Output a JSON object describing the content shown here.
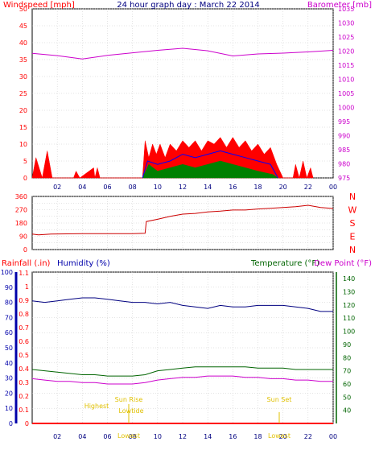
{
  "chart_data": [
    {
      "type": "line",
      "title": "24 hour graph day : March 22 2014",
      "ylabel_left": "Windspeed [mph]",
      "ylabel_right": "Barometer [mb]",
      "ylim_left": [
        0,
        50
      ],
      "ylim_right": [
        975,
        1035
      ],
      "y_ticks_left": [
        "0",
        "5",
        "10",
        "15",
        "20",
        "25",
        "30",
        "35",
        "40",
        "45",
        "50"
      ],
      "y_ticks_right": [
        "975",
        "980",
        "985",
        "990",
        "995",
        "1000",
        "1005",
        "1010",
        "1015",
        "1020",
        "1025",
        "1030",
        "1035"
      ],
      "x_ticks": [
        "02",
        "04",
        "06",
        "08",
        "10",
        "12",
        "14",
        "16",
        "18",
        "20",
        "22",
        "00"
      ],
      "xlim": [
        0,
        24
      ],
      "grid": true,
      "colors": {
        "windspeed": "#ff0000",
        "average": "#0000ff",
        "direction_gust": "#008000",
        "barometer": "#cc00cc"
      },
      "series": {
        "barometer": [
          [
            0,
            1019.2
          ],
          [
            2,
            1018.4
          ],
          [
            4,
            1017.2
          ],
          [
            6,
            1018.5
          ],
          [
            8,
            1019.4
          ],
          [
            10,
            1020.3
          ],
          [
            12,
            1021.0
          ],
          [
            14,
            1020.1
          ],
          [
            16,
            1018.3
          ],
          [
            18,
            1019.0
          ],
          [
            20,
            1019.3
          ],
          [
            22,
            1019.7
          ],
          [
            24,
            1020.3
          ]
        ],
        "gust": [
          [
            0,
            0
          ],
          [
            0.3,
            6
          ],
          [
            0.8,
            0
          ],
          [
            1.2,
            8
          ],
          [
            1.6,
            0
          ],
          [
            3.3,
            0
          ],
          [
            3.5,
            2
          ],
          [
            3.8,
            0
          ],
          [
            4.9,
            3
          ],
          [
            5.0,
            0
          ],
          [
            5.2,
            3
          ],
          [
            5.4,
            0
          ],
          [
            8.8,
            0
          ],
          [
            9.0,
            11
          ],
          [
            9.3,
            6
          ],
          [
            9.6,
            10
          ],
          [
            9.9,
            7
          ],
          [
            10.2,
            10
          ],
          [
            10.6,
            6
          ],
          [
            11.0,
            10
          ],
          [
            11.5,
            8
          ],
          [
            12.0,
            11
          ],
          [
            12.5,
            9
          ],
          [
            13.0,
            11
          ],
          [
            13.5,
            8
          ],
          [
            14.0,
            11
          ],
          [
            14.5,
            10
          ],
          [
            15.0,
            12
          ],
          [
            15.5,
            9
          ],
          [
            16.0,
            12
          ],
          [
            16.5,
            9
          ],
          [
            17.0,
            11
          ],
          [
            17.5,
            8
          ],
          [
            18.0,
            10
          ],
          [
            18.5,
            7
          ],
          [
            19.0,
            9
          ],
          [
            19.5,
            4
          ],
          [
            20.0,
            0
          ],
          [
            20.8,
            0
          ],
          [
            21.0,
            4
          ],
          [
            21.3,
            0
          ],
          [
            21.6,
            5
          ],
          [
            21.9,
            0
          ],
          [
            22.2,
            3
          ],
          [
            22.4,
            0
          ]
        ],
        "average": [
          [
            8.8,
            0
          ],
          [
            9.2,
            5
          ],
          [
            10.0,
            4
          ],
          [
            11.0,
            5
          ],
          [
            12.0,
            7
          ],
          [
            13.0,
            6
          ],
          [
            14.0,
            7
          ],
          [
            15.0,
            8
          ],
          [
            16.0,
            7
          ],
          [
            17.0,
            6
          ],
          [
            18.0,
            5
          ],
          [
            19.0,
            4
          ],
          [
            19.6,
            0
          ]
        ],
        "lull": [
          [
            8.8,
            0
          ],
          [
            9.3,
            4
          ],
          [
            10.0,
            2
          ],
          [
            11.0,
            3
          ],
          [
            12.0,
            4
          ],
          [
            13.0,
            3
          ],
          [
            14.0,
            4
          ],
          [
            15.0,
            5
          ],
          [
            16.0,
            4
          ],
          [
            17.0,
            3
          ],
          [
            18.0,
            2
          ],
          [
            19.2,
            1
          ],
          [
            19.6,
            0
          ]
        ]
      }
    },
    {
      "type": "line",
      "ylabel_right": [
        "N",
        "W",
        "S",
        "E",
        "N"
      ],
      "ylim": [
        0,
        360
      ],
      "y_ticks": [
        "0",
        "45",
        "90",
        "135",
        "180",
        "225",
        "270",
        "315",
        "360"
      ],
      "x_ticks": [],
      "xlim": [
        0,
        24
      ],
      "grid": true,
      "series": {
        "direction": [
          [
            0,
            105
          ],
          [
            0.5,
            100
          ],
          [
            1.5,
            105
          ],
          [
            4,
            108
          ],
          [
            6,
            108
          ],
          [
            8,
            108
          ],
          [
            9.0,
            110
          ],
          [
            9.1,
            190
          ],
          [
            10,
            205
          ],
          [
            11,
            225
          ],
          [
            12,
            240
          ],
          [
            13,
            245
          ],
          [
            14,
            255
          ],
          [
            15,
            260
          ],
          [
            16,
            268
          ],
          [
            17,
            268
          ],
          [
            18,
            275
          ],
          [
            19,
            280
          ],
          [
            20,
            285
          ],
          [
            21,
            290
          ],
          [
            22,
            300
          ],
          [
            23,
            285
          ],
          [
            24,
            278
          ]
        ]
      }
    },
    {
      "type": "line",
      "ylabel_left_1": "Rainfall (.in)",
      "ylabel_left_2": "Humidity (%)",
      "ylabel_right_1": "Temperature (°F)",
      "ylabel_right_2": "Dew Point (°F)",
      "rain_ticks": [
        "0",
        "0.1",
        "0.2",
        "0.3",
        "0.4",
        "0.5",
        "0.6",
        "0.7",
        "0.8",
        "0.9",
        "1",
        "1.1"
      ],
      "humidity_ticks": [
        "0",
        "10",
        "20",
        "30",
        "40",
        "50",
        "60",
        "70",
        "80",
        "90",
        "100"
      ],
      "temp_ticks": [
        "40",
        "50",
        "60",
        "70",
        "80",
        "90",
        "100",
        "110",
        "120",
        "130",
        "140"
      ],
      "x_ticks": [
        "02",
        "04",
        "06",
        "08",
        "10",
        "12",
        "14",
        "16",
        "18",
        "20",
        "22",
        "00"
      ],
      "xlim": [
        0,
        24
      ],
      "grid": true,
      "annotations": [
        "Highest",
        "Sun Rise",
        "Lowest",
        "Lowtide",
        "Sun Set",
        "Lowest"
      ],
      "series": {
        "humidity": [
          [
            0,
            81
          ],
          [
            1,
            80
          ],
          [
            2,
            81
          ],
          [
            3,
            82
          ],
          [
            4,
            83
          ],
          [
            5,
            83
          ],
          [
            6,
            82
          ],
          [
            7,
            81
          ],
          [
            8,
            80
          ],
          [
            9,
            80
          ],
          [
            10,
            79
          ],
          [
            11,
            80
          ],
          [
            12,
            78
          ],
          [
            13,
            77
          ],
          [
            14,
            76
          ],
          [
            15,
            78
          ],
          [
            16,
            77
          ],
          [
            17,
            77
          ],
          [
            18,
            78
          ],
          [
            19,
            78
          ],
          [
            20,
            78
          ],
          [
            21,
            77
          ],
          [
            22,
            76
          ],
          [
            23,
            74
          ],
          [
            24,
            74
          ]
        ],
        "temperature": [
          [
            0,
            71
          ],
          [
            1,
            70
          ],
          [
            2,
            69
          ],
          [
            3,
            68
          ],
          [
            4,
            67
          ],
          [
            5,
            67
          ],
          [
            6,
            66
          ],
          [
            7,
            66
          ],
          [
            8,
            66
          ],
          [
            9,
            67
          ],
          [
            10,
            70
          ],
          [
            11,
            71
          ],
          [
            12,
            72
          ],
          [
            13,
            73
          ],
          [
            14,
            73
          ],
          [
            15,
            73
          ],
          [
            16,
            73
          ],
          [
            17,
            73
          ],
          [
            18,
            72
          ],
          [
            19,
            72
          ],
          [
            20,
            72
          ],
          [
            21,
            71
          ],
          [
            22,
            71
          ],
          [
            23,
            71
          ],
          [
            24,
            71
          ]
        ],
        "dewpoint": [
          [
            0,
            64
          ],
          [
            1,
            63
          ],
          [
            2,
            62
          ],
          [
            3,
            62
          ],
          [
            4,
            61
          ],
          [
            5,
            61
          ],
          [
            6,
            60
          ],
          [
            7,
            60
          ],
          [
            8,
            60
          ],
          [
            9,
            61
          ],
          [
            10,
            63
          ],
          [
            11,
            64
          ],
          [
            12,
            65
          ],
          [
            13,
            65
          ],
          [
            14,
            66
          ],
          [
            15,
            66
          ],
          [
            16,
            66
          ],
          [
            17,
            65
          ],
          [
            18,
            65
          ],
          [
            19,
            64
          ],
          [
            20,
            64
          ],
          [
            21,
            63
          ],
          [
            22,
            63
          ],
          [
            23,
            62
          ],
          [
            24,
            62
          ]
        ],
        "rain": [
          [
            0,
            0
          ],
          [
            24,
            0
          ]
        ]
      }
    }
  ]
}
